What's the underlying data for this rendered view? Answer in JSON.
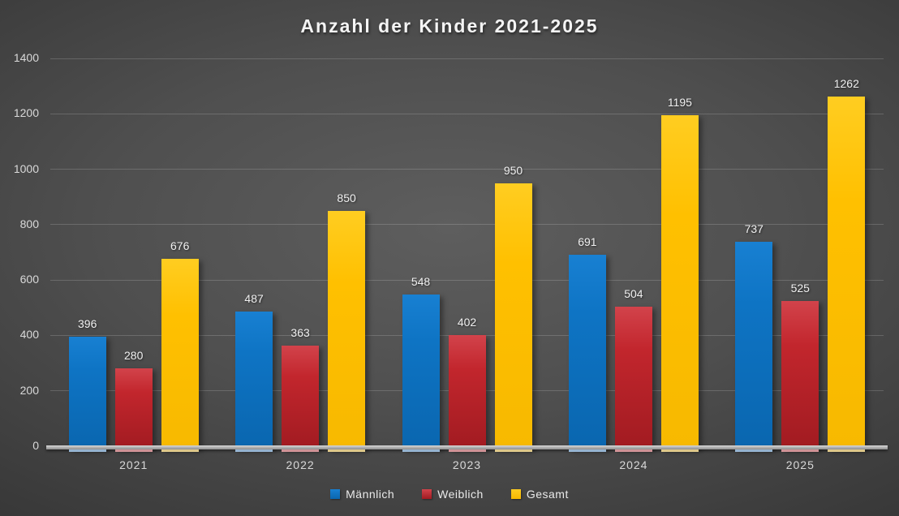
{
  "title": "Anzahl der Kinder 2021-2025",
  "chart_data": {
    "type": "bar",
    "title": "Anzahl der Kinder 2021-2025",
    "categories": [
      "2021",
      "2022",
      "2023",
      "2024",
      "2025"
    ],
    "series": [
      {
        "name": "Männlich",
        "values": [
          396,
          487,
          548,
          691,
          737
        ],
        "color": "#0E74C4",
        "color_top": "#1880D2",
        "color_bottom": "#0A66AF",
        "reflection_color": "#a9cdee"
      },
      {
        "name": "Weiblich",
        "values": [
          280,
          363,
          402,
          504,
          525
        ],
        "color": "#C2262D",
        "color_top": "#D2434B",
        "color_bottom": "#A11B21",
        "reflection_color": "#eda6aa"
      },
      {
        "name": "Gesamt",
        "values": [
          676,
          850,
          950,
          1195,
          1262
        ],
        "color": "#FFC000",
        "color_top": "#FFCD21",
        "color_bottom": "#F7B900",
        "reflection_color": "#ffe59c"
      }
    ],
    "xlabel": "",
    "ylabel": "",
    "ylim": [
      0,
      1400
    ],
    "yticks": [
      0,
      200,
      400,
      600,
      800,
      1000,
      1200,
      1400
    ],
    "grid": true,
    "legend_position": "bottom",
    "value_labels": true,
    "background_style": "dark-radial-gradient"
  }
}
